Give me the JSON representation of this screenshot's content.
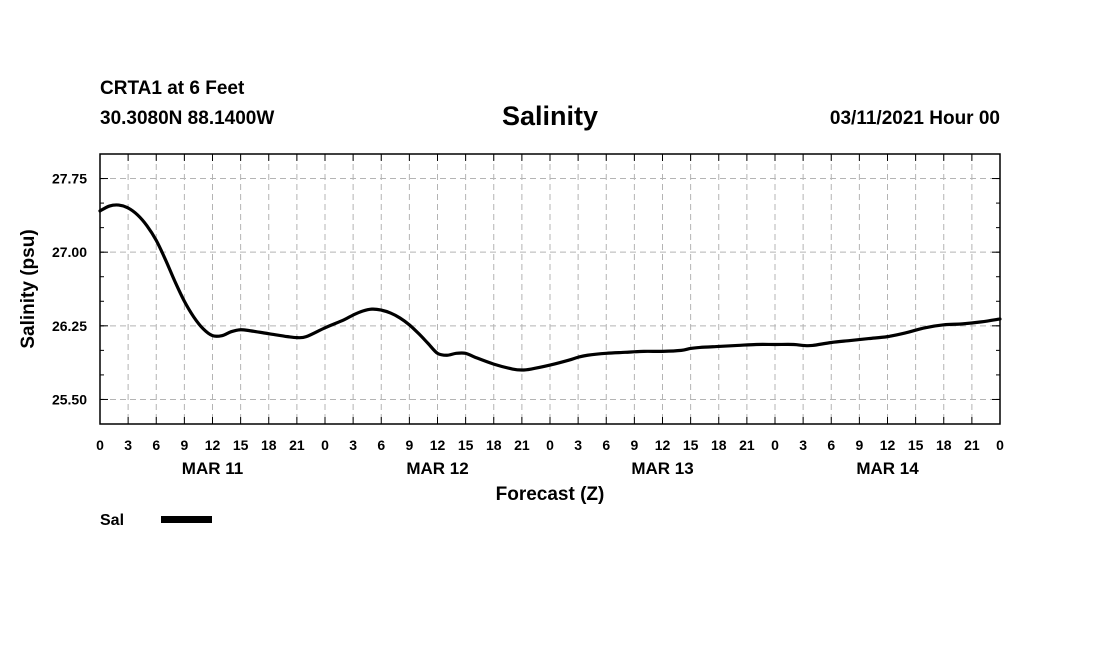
{
  "header": {
    "station": "CRTA1 at 6 Feet",
    "location": "30.3080N 88.1400W",
    "title": "Salinity",
    "datetime": "03/11/2021 Hour 00"
  },
  "colors": {
    "line": "#000000",
    "grid": "#b4b4b4",
    "background": "#ffffff"
  },
  "chart_data": {
    "type": "line",
    "title": "Salinity",
    "xlabel": "Forecast (Z)",
    "ylabel": "Salinity (psu)",
    "xlim": [
      0,
      96
    ],
    "ylim": [
      25.25,
      28.0
    ],
    "y_ticks": [
      {
        "value": 25.5,
        "label": "25.50"
      },
      {
        "value": 26.25,
        "label": "26.25"
      },
      {
        "value": 27.0,
        "label": "27.00"
      },
      {
        "value": 27.75,
        "label": "27.75"
      }
    ],
    "y_minor_step": 0.25,
    "x_ticks": [
      {
        "hour": 0,
        "label": "0"
      },
      {
        "hour": 3,
        "label": "3"
      },
      {
        "hour": 6,
        "label": "6"
      },
      {
        "hour": 9,
        "label": "9"
      },
      {
        "hour": 12,
        "label": "12"
      },
      {
        "hour": 15,
        "label": "15"
      },
      {
        "hour": 18,
        "label": "18"
      },
      {
        "hour": 21,
        "label": "21"
      },
      {
        "hour": 24,
        "label": "0"
      },
      {
        "hour": 27,
        "label": "3"
      },
      {
        "hour": 30,
        "label": "6"
      },
      {
        "hour": 33,
        "label": "9"
      },
      {
        "hour": 36,
        "label": "12"
      },
      {
        "hour": 39,
        "label": "15"
      },
      {
        "hour": 42,
        "label": "18"
      },
      {
        "hour": 45,
        "label": "21"
      },
      {
        "hour": 48,
        "label": "0"
      },
      {
        "hour": 51,
        "label": "3"
      },
      {
        "hour": 54,
        "label": "6"
      },
      {
        "hour": 57,
        "label": "9"
      },
      {
        "hour": 60,
        "label": "12"
      },
      {
        "hour": 63,
        "label": "15"
      },
      {
        "hour": 66,
        "label": "18"
      },
      {
        "hour": 69,
        "label": "21"
      },
      {
        "hour": 72,
        "label": "0"
      },
      {
        "hour": 75,
        "label": "3"
      },
      {
        "hour": 78,
        "label": "6"
      },
      {
        "hour": 81,
        "label": "9"
      },
      {
        "hour": 84,
        "label": "12"
      },
      {
        "hour": 87,
        "label": "15"
      },
      {
        "hour": 90,
        "label": "18"
      },
      {
        "hour": 93,
        "label": "21"
      },
      {
        "hour": 96,
        "label": "0"
      }
    ],
    "day_labels": [
      {
        "hour": 12,
        "label": "MAR 11"
      },
      {
        "hour": 36,
        "label": "MAR 12"
      },
      {
        "hour": 60,
        "label": "MAR 13"
      },
      {
        "hour": 84,
        "label": "MAR 14"
      }
    ],
    "grid": true,
    "legend_position": "bottom-left",
    "series": [
      {
        "name": "Sal",
        "x": [
          0,
          1,
          2,
          3,
          4,
          5,
          6,
          7,
          8,
          9,
          10,
          11,
          12,
          13,
          14,
          15,
          16,
          18,
          20,
          21,
          22,
          24,
          26,
          27,
          28,
          29,
          30,
          31,
          32,
          33,
          34,
          35,
          36,
          37,
          38,
          39,
          40,
          42,
          44,
          45,
          46,
          48,
          50,
          51,
          52,
          54,
          56,
          58,
          60,
          62,
          63,
          64,
          66,
          68,
          70,
          72,
          74,
          75,
          76,
          78,
          80,
          82,
          84,
          86,
          88,
          90,
          92,
          94,
          96
        ],
        "values": [
          27.42,
          27.47,
          27.48,
          27.45,
          27.38,
          27.27,
          27.12,
          26.92,
          26.7,
          26.5,
          26.34,
          26.22,
          26.15,
          26.15,
          26.19,
          26.21,
          26.2,
          26.17,
          26.14,
          26.13,
          26.14,
          26.23,
          26.31,
          26.36,
          26.4,
          26.42,
          26.41,
          26.38,
          26.33,
          26.26,
          26.17,
          26.07,
          25.97,
          25.95,
          25.97,
          25.97,
          25.93,
          25.86,
          25.81,
          25.8,
          25.81,
          25.85,
          25.9,
          25.93,
          25.95,
          25.97,
          25.98,
          25.99,
          25.99,
          26.0,
          26.02,
          26.03,
          26.04,
          26.05,
          26.06,
          26.06,
          26.06,
          26.05,
          26.05,
          26.08,
          26.1,
          26.12,
          26.14,
          26.18,
          26.23,
          26.26,
          26.27,
          26.29,
          26.32
        ]
      }
    ]
  }
}
